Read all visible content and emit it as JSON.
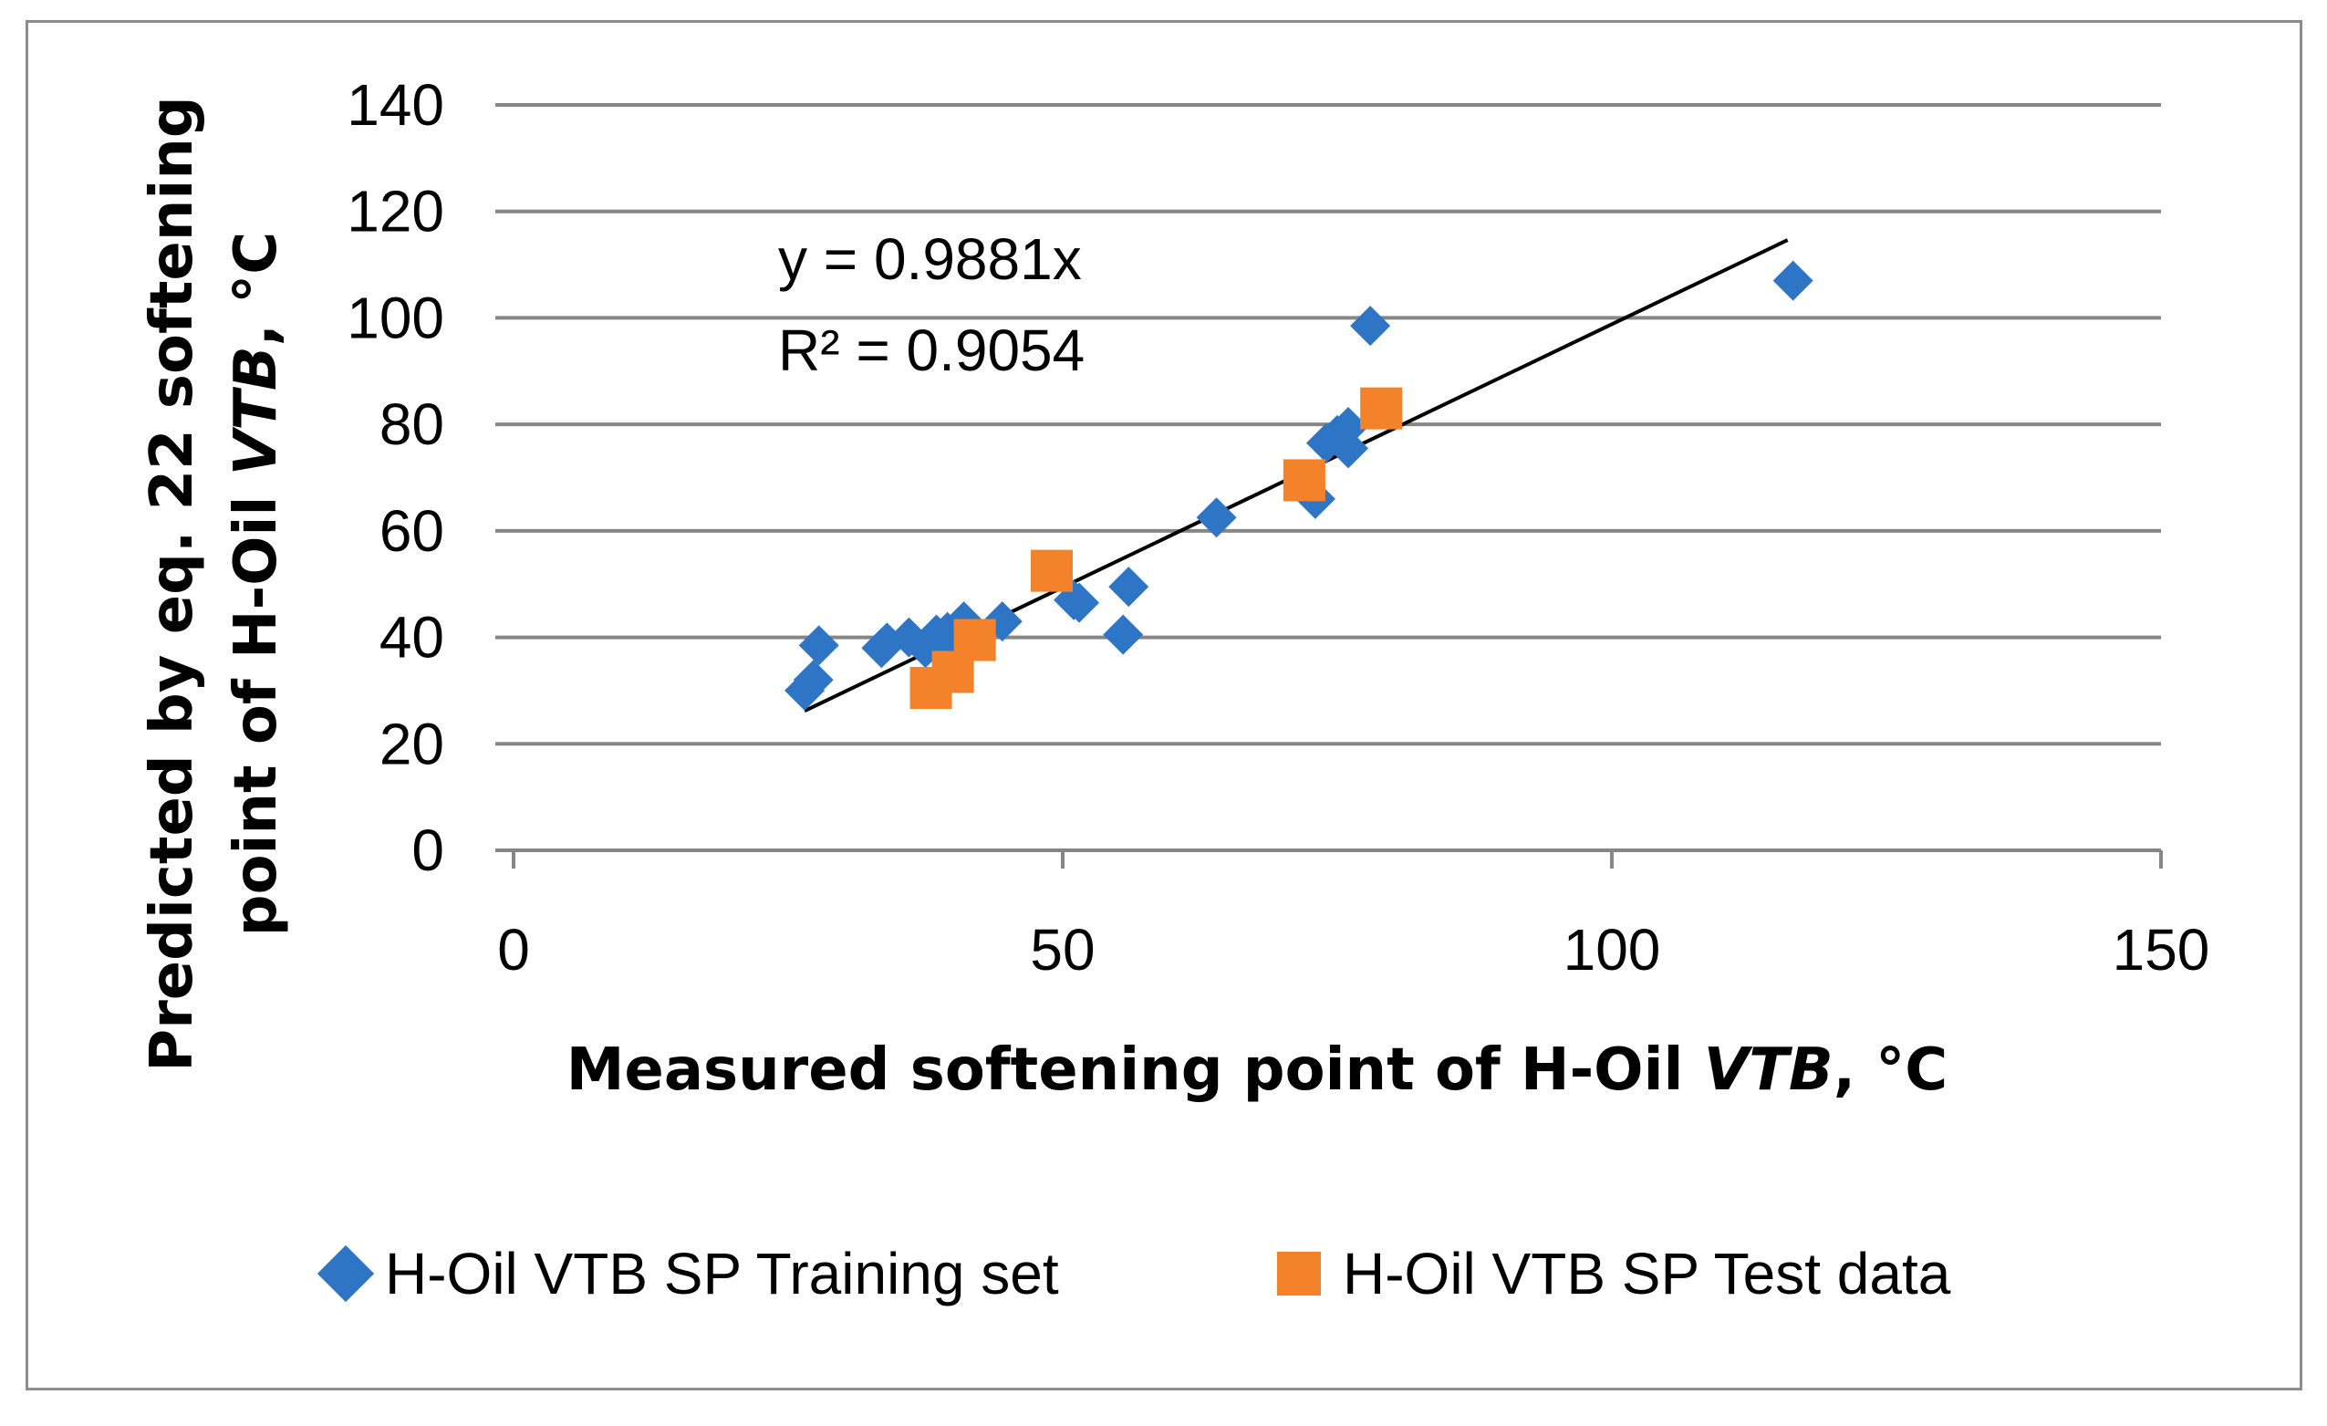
{
  "chart_data": {
    "type": "scatter",
    "title": "",
    "xlabel": {
      "prefix": "Measured softening point of H-Oil ",
      "italic": "VTB",
      "suffix": ", °C"
    },
    "ylabel": {
      "line1": "Predicted by eq. 22 softening",
      "line2_prefix": "point of H-Oil ",
      "line2_italic": "VTB",
      "line2_suffix": ", °C"
    },
    "xlim": [
      0,
      150
    ],
    "ylim": [
      0,
      140
    ],
    "x_ticks": [
      0,
      50,
      100,
      150
    ],
    "y_ticks": [
      0,
      20,
      40,
      60,
      80,
      100,
      120,
      140
    ],
    "grid": "horizontal",
    "legend_position": "bottom",
    "series": [
      {
        "name": "H-Oil VTB SP Training set",
        "marker": "diamond",
        "color": "#2E75C6",
        "points": [
          [
            26.5,
            30
          ],
          [
            27.3,
            32
          ],
          [
            27.8,
            38.5
          ],
          [
            33.5,
            38
          ],
          [
            34,
            39
          ],
          [
            36,
            40
          ],
          [
            37.5,
            38
          ],
          [
            38.5,
            40.5
          ],
          [
            39,
            38.5
          ],
          [
            39.5,
            41
          ],
          [
            41,
            43
          ],
          [
            44.5,
            43
          ],
          [
            51,
            47
          ],
          [
            51.5,
            46.5
          ],
          [
            56,
            49.5
          ],
          [
            55.5,
            40.5
          ],
          [
            64,
            62.5
          ],
          [
            73,
            66
          ],
          [
            74,
            76.5
          ],
          [
            75,
            78
          ],
          [
            76,
            79.5
          ],
          [
            76,
            75.5
          ],
          [
            78,
            98.5
          ],
          [
            116.5,
            107
          ]
        ]
      },
      {
        "name": "H-Oil VTB SP Test data",
        "marker": "square",
        "color": "#F4822A",
        "points": [
          [
            38,
            30.5
          ],
          [
            40,
            33.5
          ],
          [
            42,
            39.5
          ],
          [
            49,
            52.5
          ],
          [
            72,
            69.5
          ],
          [
            79,
            83
          ]
        ]
      }
    ],
    "trendline": {
      "slope": 0.9881,
      "x_range": [
        26.5,
        116
      ],
      "color": "#000000",
      "equation": "y = 0.9881x",
      "r_squared": "R² = 0.9054"
    }
  }
}
